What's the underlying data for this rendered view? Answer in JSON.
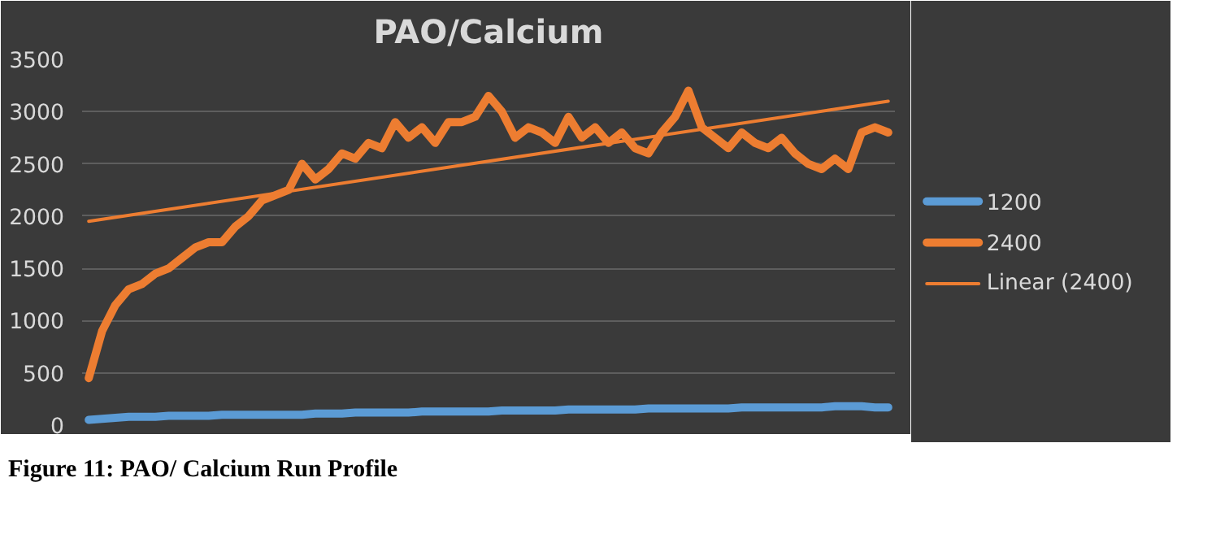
{
  "chart_data": {
    "type": "line",
    "title": "PAO/Calcium",
    "categories": [
      null,
      null,
      null,
      null,
      null,
      null,
      null,
      null,
      null,
      null,
      null,
      null,
      null,
      null,
      null,
      null,
      null,
      null,
      null,
      null,
      null,
      null,
      null,
      null,
      null,
      null,
      null,
      null,
      null,
      null,
      null,
      null,
      null,
      null,
      null,
      null,
      null,
      null,
      null,
      null,
      null,
      null,
      null,
      null,
      null,
      null,
      null,
      null,
      null,
      null,
      null,
      null,
      null,
      null,
      null,
      null,
      null,
      null,
      null,
      null,
      null
    ],
    "series": [
      {
        "name": "1200",
        "color": "#5b9bd5",
        "values": [
          50,
          60,
          70,
          80,
          80,
          80,
          90,
          90,
          90,
          90,
          100,
          100,
          100,
          100,
          100,
          100,
          100,
          110,
          110,
          110,
          120,
          120,
          120,
          120,
          120,
          130,
          130,
          130,
          130,
          130,
          130,
          140,
          140,
          140,
          140,
          140,
          150,
          150,
          150,
          150,
          150,
          150,
          160,
          160,
          160,
          160,
          160,
          160,
          160,
          170,
          170,
          170,
          170,
          170,
          170,
          170,
          180,
          180,
          180,
          170,
          170
        ]
      },
      {
        "name": "2400",
        "color": "#ed7d31",
        "values": [
          450,
          900,
          1150,
          1300,
          1350,
          1450,
          1500,
          1600,
          1700,
          1750,
          1750,
          1900,
          2000,
          2150,
          2200,
          2250,
          2500,
          2350,
          2450,
          2600,
          2550,
          2700,
          2650,
          2900,
          2750,
          2850,
          2700,
          2900,
          2900,
          2950,
          3150,
          3000,
          2750,
          2850,
          2800,
          2700,
          2950,
          2750,
          2850,
          2700,
          2800,
          2650,
          2600,
          2800,
          2950,
          3200,
          2850,
          2750,
          2650,
          2800,
          2700,
          2650,
          2750,
          2600,
          2500,
          2450,
          2550,
          2450,
          2800,
          2850,
          2800
        ]
      },
      {
        "name": "Linear (2400)",
        "color": "#ed7d31",
        "type": "line",
        "values": [
          1950,
          null,
          null,
          null,
          null,
          null,
          null,
          null,
          null,
          null,
          null,
          null,
          null,
          null,
          null,
          null,
          null,
          null,
          null,
          null,
          null,
          null,
          null,
          null,
          null,
          null,
          null,
          null,
          null,
          null,
          null,
          null,
          null,
          null,
          null,
          null,
          null,
          null,
          null,
          null,
          null,
          null,
          null,
          null,
          null,
          null,
          null,
          null,
          null,
          null,
          null,
          null,
          null,
          null,
          null,
          null,
          null,
          null,
          null,
          null,
          3100
        ]
      }
    ],
    "ylim": [
      0,
      3500
    ],
    "yticks": [
      0,
      500,
      1000,
      1500,
      2000,
      2500,
      3000,
      3500
    ],
    "grid": "y",
    "legend": "right",
    "tick_labels": "y",
    "annotations": [
      "Figure 11: PAO/ Calcium Run Profile"
    ]
  }
}
